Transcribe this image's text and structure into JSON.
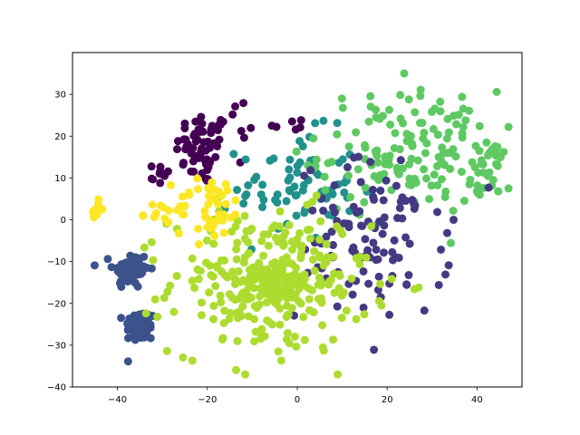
{
  "chart_data": {
    "type": "scatter",
    "title": "",
    "xlabel": "",
    "ylabel": "",
    "xlim": [
      -50,
      50
    ],
    "ylim": [
      -40,
      40
    ],
    "xticks": [
      -40,
      -20,
      0,
      20,
      40
    ],
    "yticks": [
      -40,
      -30,
      -20,
      -10,
      0,
      10,
      20,
      30
    ],
    "grid": false,
    "legend": "none",
    "series": [
      {
        "color": "#440154",
        "clusters": [
          {
            "cx": -21,
            "cy": 17,
            "sx": 3.0,
            "sy": 4.5,
            "n": 60
          },
          {
            "cx": -31,
            "cy": 11,
            "sx": 1.8,
            "sy": 1.3,
            "n": 10
          },
          {
            "cx": -2,
            "cy": 23,
            "sx": 2.0,
            "sy": 1.2,
            "n": 6
          },
          {
            "cx": -14,
            "cy": 24,
            "sx": 3.0,
            "sy": 2.5,
            "n": 7
          }
        ]
      },
      {
        "color": "#3b528b",
        "clusters": [
          {
            "cx": -37,
            "cy": -12,
            "sx": 2.0,
            "sy": 2.3,
            "n": 65
          },
          {
            "cx": -35,
            "cy": -25.5,
            "sx": 1.7,
            "sy": 2.0,
            "n": 60
          }
        ]
      },
      {
        "color": "#21918c",
        "clusters": [
          {
            "cx": 0,
            "cy": 8,
            "sx": 6.5,
            "sy": 6.5,
            "n": 75
          }
        ]
      },
      {
        "color": "#5ec962",
        "clusters": [
          {
            "cx": 25,
            "cy": 16,
            "sx": 10,
            "sy": 7.5,
            "n": 150
          },
          {
            "cx": 42,
            "cy": 11,
            "sx": 1.5,
            "sy": 2.0,
            "n": 18
          },
          {
            "cx": 44,
            "cy": 17,
            "sx": 1.5,
            "sy": 1.0,
            "n": 8
          }
        ]
      },
      {
        "color": "#443a83",
        "clusters": [
          {
            "cx": 17,
            "cy": -5,
            "sx": 8.5,
            "sy": 9.5,
            "n": 110
          }
        ]
      },
      {
        "color": "#addc30",
        "clusters": [
          {
            "cx": -6,
            "cy": -15,
            "sx": 11,
            "sy": 8.5,
            "n": 270
          },
          {
            "cx": -5,
            "cy": -15,
            "sx": 3.0,
            "sy": 3.0,
            "n": 60
          }
        ]
      },
      {
        "color": "#fde725",
        "clusters": [
          {
            "cx": -44.5,
            "cy": 2.5,
            "sx": 0.6,
            "sy": 1.8,
            "n": 12
          },
          {
            "cx": -19,
            "cy": 3,
            "sx": 4,
            "sy": 4,
            "n": 45
          },
          {
            "cx": -31,
            "cy": 1.5,
            "sx": 2.5,
            "sy": 1.2,
            "n": 12
          }
        ]
      }
    ]
  }
}
